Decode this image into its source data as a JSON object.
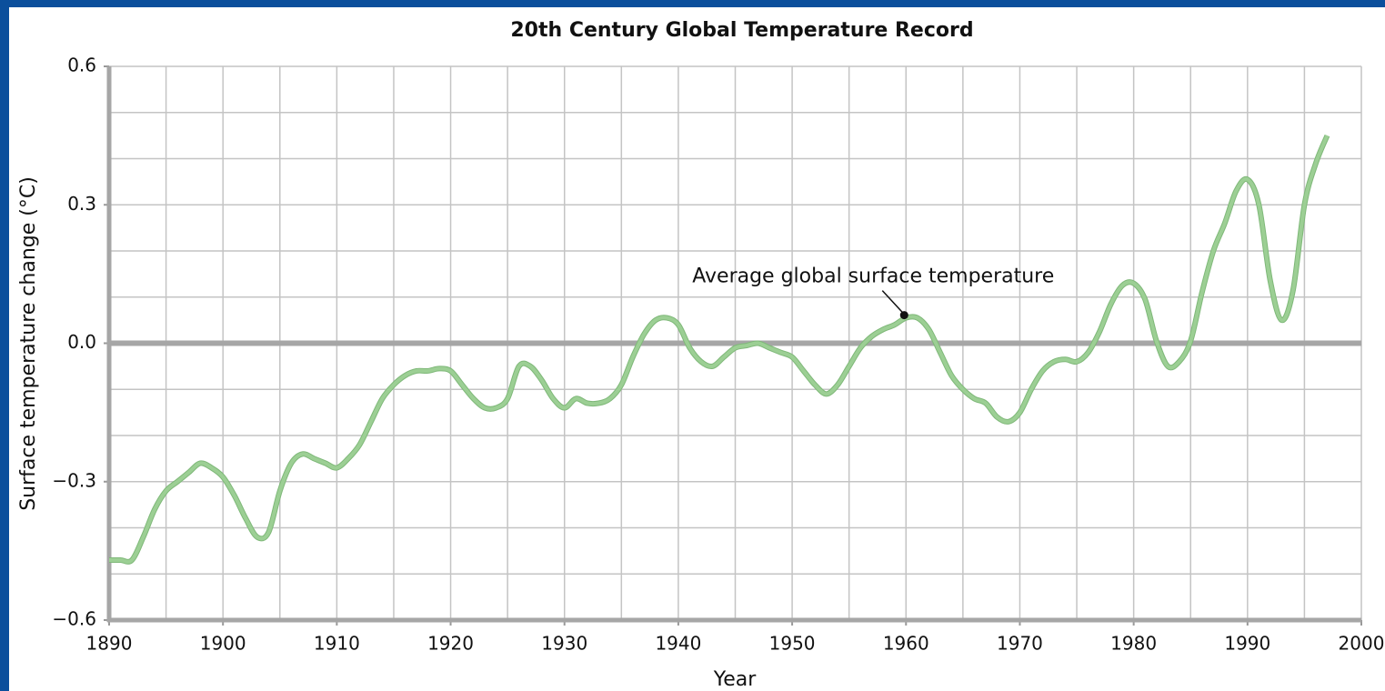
{
  "chart_data": {
    "type": "line",
    "title": "20th Century Global Temperature Record",
    "xlabel": "Year",
    "ylabel": "Surface temperature change (°C)",
    "x": [
      1890,
      1891,
      1892,
      1893,
      1894,
      1895,
      1896,
      1897,
      1898,
      1899,
      1900,
      1901,
      1902,
      1903,
      1904,
      1905,
      1906,
      1907,
      1908,
      1909,
      1910,
      1911,
      1912,
      1913,
      1914,
      1915,
      1916,
      1917,
      1918,
      1919,
      1920,
      1921,
      1922,
      1923,
      1924,
      1925,
      1926,
      1927,
      1928,
      1929,
      1930,
      1931,
      1932,
      1933,
      1934,
      1935,
      1936,
      1937,
      1938,
      1939,
      1940,
      1941,
      1942,
      1943,
      1944,
      1945,
      1946,
      1947,
      1948,
      1949,
      1950,
      1951,
      1952,
      1953,
      1954,
      1955,
      1956,
      1957,
      1958,
      1959,
      1960,
      1961,
      1962,
      1963,
      1964,
      1965,
      1966,
      1967,
      1968,
      1969,
      1970,
      1971,
      1972,
      1973,
      1974,
      1975,
      1976,
      1977,
      1978,
      1979,
      1980,
      1981,
      1982,
      1983,
      1984,
      1985,
      1986,
      1987,
      1988,
      1989,
      1990,
      1991,
      1992,
      1993,
      1994,
      1995,
      1996,
      1997
    ],
    "series": [
      {
        "name": "Average global surface temperature",
        "color": "#9ccf94",
        "values": [
          -0.47,
          -0.47,
          -0.47,
          -0.42,
          -0.36,
          -0.32,
          -0.3,
          -0.28,
          -0.26,
          -0.27,
          -0.29,
          -0.33,
          -0.38,
          -0.42,
          -0.41,
          -0.32,
          -0.26,
          -0.24,
          -0.25,
          -0.26,
          -0.27,
          -0.25,
          -0.22,
          -0.17,
          -0.12,
          -0.09,
          -0.07,
          -0.06,
          -0.06,
          -0.055,
          -0.06,
          -0.09,
          -0.12,
          -0.14,
          -0.14,
          -0.12,
          -0.05,
          -0.05,
          -0.08,
          -0.12,
          -0.14,
          -0.12,
          -0.13,
          -0.13,
          -0.12,
          -0.09,
          -0.03,
          0.02,
          0.05,
          0.055,
          0.04,
          -0.01,
          -0.04,
          -0.05,
          -0.03,
          -0.01,
          -0.005,
          0,
          -0.01,
          -0.02,
          -0.03,
          -0.06,
          -0.09,
          -0.11,
          -0.09,
          -0.05,
          -0.01,
          0.015,
          0.03,
          0.04,
          0.055,
          0.055,
          0.03,
          -0.02,
          -0.07,
          -0.1,
          -0.12,
          -0.13,
          -0.16,
          -0.17,
          -0.15,
          -0.1,
          -0.06,
          -0.04,
          -0.035,
          -0.04,
          -0.02,
          0.025,
          0.085,
          0.125,
          0.13,
          0.095,
          0.005,
          -0.05,
          -0.04,
          0.005,
          0.11,
          0.2,
          0.26,
          0.33,
          0.355,
          0.3,
          0.135,
          0.05,
          0.115,
          0.3,
          0.39,
          0.45
        ]
      }
    ],
    "annotation": {
      "text": "Average global surface temperature",
      "x": 1960
    },
    "xlim": [
      1890,
      2000
    ],
    "xticks": [
      1890,
      1900,
      1910,
      1920,
      1930,
      1940,
      1950,
      1960,
      1970,
      1980,
      1990,
      2000
    ],
    "xgrid": [
      1890,
      1895,
      1900,
      1905,
      1910,
      1915,
      1920,
      1925,
      1930,
      1935,
      1940,
      1945,
      1950,
      1955,
      1960,
      1965,
      1970,
      1975,
      1980,
      1985,
      1990,
      1995,
      2000
    ],
    "ylim": [
      -0.6,
      0.6
    ],
    "yticks": [
      {
        "value": -0.6,
        "label": "−0.6"
      },
      {
        "value": -0.3,
        "label": "−0.3"
      },
      {
        "value": 0,
        "label": "0.0"
      },
      0.3,
      0.6
    ],
    "ygrid": [
      -0.6,
      -0.5,
      -0.4,
      -0.3,
      -0.2,
      -0.1,
      0,
      0.1,
      0.2,
      0.3,
      0.4,
      0.5,
      0.6
    ],
    "grid": true
  }
}
